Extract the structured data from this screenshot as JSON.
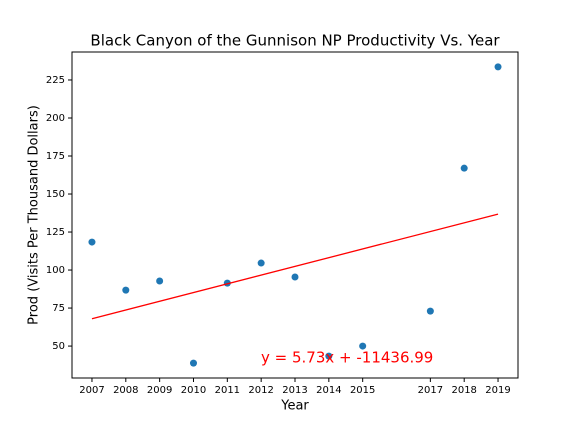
{
  "chart_data": {
    "type": "scatter",
    "title": "Black Canyon of the Gunnison NP Productivity Vs. Year",
    "xlabel": "Year",
    "ylabel": "Prod (Visits Per Thousand Dollars)",
    "x": [
      2007,
      2008,
      2009,
      2010,
      2011,
      2012,
      2013,
      2014,
      2015,
      2017,
      2018,
      2019
    ],
    "values": [
      118.4,
      86.8,
      92.8,
      38.8,
      91.4,
      104.6,
      95.4,
      43.4,
      50,
      73,
      167,
      233.6
    ],
    "color": "#1f77b4",
    "trendline": {
      "x": [
        2007,
        2019
      ],
      "y": [
        68,
        136.8
      ],
      "color": "#ff0000"
    },
    "annotation": {
      "text": "y = 5.73x + -11436.99",
      "color": "#ff0000"
    },
    "xlim": [
      2006.41,
      2019.59
    ],
    "ylim": [
      29,
      243.4
    ],
    "xticks": [
      2007,
      2008,
      2009,
      2010,
      2011,
      2012,
      2013,
      2014,
      2015,
      2017,
      2018,
      2019
    ],
    "yticks": [
      50,
      75,
      100,
      125,
      150,
      175,
      200,
      225
    ]
  }
}
